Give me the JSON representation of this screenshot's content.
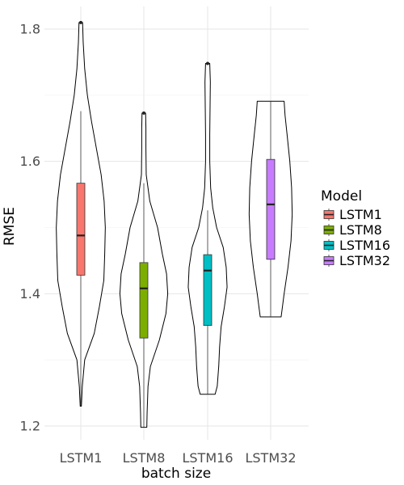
{
  "chart_data": {
    "type": "violin",
    "xlabel": "batch size",
    "ylabel": "RMSE",
    "ylim": [
      1.19,
      1.835
    ],
    "yticks": [
      1.2,
      1.4,
      1.6,
      1.8
    ],
    "ytick_labels": [
      "1.2",
      "1.4",
      "1.6",
      "1.8"
    ],
    "grid": true,
    "legend_title": "Model",
    "legend_position": "right",
    "categories": [
      "LSTM1",
      "LSTM8",
      "LSTM16",
      "LSTM32"
    ],
    "series": [
      {
        "name": "LSTM1",
        "color": "#F8766D",
        "min": 1.23,
        "q1": 1.428,
        "median": 1.488,
        "q3": 1.567,
        "max": 1.81,
        "whisker_low": 1.23,
        "whisker_high": 1.676,
        "outliers": [
          1.81
        ],
        "density": [
          [
            1.23,
            0.02
          ],
          [
            1.26,
            0.05
          ],
          [
            1.3,
            0.13
          ],
          [
            1.34,
            0.45
          ],
          [
            1.38,
            0.62
          ],
          [
            1.42,
            0.77
          ],
          [
            1.46,
            0.8
          ],
          [
            1.5,
            0.82
          ],
          [
            1.54,
            0.78
          ],
          [
            1.58,
            0.68
          ],
          [
            1.62,
            0.52
          ],
          [
            1.66,
            0.36
          ],
          [
            1.7,
            0.22
          ],
          [
            1.74,
            0.13
          ],
          [
            1.78,
            0.08
          ],
          [
            1.81,
            0.06
          ]
        ]
      },
      {
        "name": "LSTM8",
        "color": "#7CAE00",
        "min": 1.198,
        "q1": 1.333,
        "median": 1.408,
        "q3": 1.447,
        "max": 1.673,
        "whisker_low": 1.198,
        "whisker_high": 1.567,
        "outliers": [
          1.673
        ],
        "density": [
          [
            1.198,
            0.1
          ],
          [
            1.22,
            0.11
          ],
          [
            1.26,
            0.14
          ],
          [
            1.29,
            0.22
          ],
          [
            1.33,
            0.52
          ],
          [
            1.37,
            0.74
          ],
          [
            1.4,
            0.8
          ],
          [
            1.43,
            0.76
          ],
          [
            1.46,
            0.62
          ],
          [
            1.5,
            0.46
          ],
          [
            1.54,
            0.2
          ],
          [
            1.58,
            0.08
          ],
          [
            1.62,
            0.07
          ],
          [
            1.65,
            0.07
          ],
          [
            1.673,
            0.06
          ]
        ]
      },
      {
        "name": "LSTM16",
        "color": "#00BFC4",
        "min": 1.248,
        "q1": 1.352,
        "median": 1.435,
        "q3": 1.459,
        "max": 1.748,
        "whisker_low": 1.248,
        "whisker_high": 1.526,
        "outliers": [
          1.748
        ],
        "density": [
          [
            1.248,
            0.25
          ],
          [
            1.26,
            0.32
          ],
          [
            1.29,
            0.37
          ],
          [
            1.32,
            0.4
          ],
          [
            1.35,
            0.45
          ],
          [
            1.38,
            0.56
          ],
          [
            1.41,
            0.65
          ],
          [
            1.44,
            0.62
          ],
          [
            1.47,
            0.52
          ],
          [
            1.5,
            0.3
          ],
          [
            1.53,
            0.17
          ],
          [
            1.56,
            0.1
          ],
          [
            1.6,
            0.07
          ],
          [
            1.64,
            0.07
          ],
          [
            1.68,
            0.08
          ],
          [
            1.72,
            0.09
          ],
          [
            1.748,
            0.07
          ]
        ]
      },
      {
        "name": "LSTM32",
        "color": "#C77CFF",
        "min": 1.365,
        "q1": 1.452,
        "median": 1.535,
        "q3": 1.603,
        "max": 1.691,
        "whisker_low": 1.365,
        "whisker_high": 1.691,
        "outliers": [],
        "density": [
          [
            1.365,
            0.35
          ],
          [
            1.4,
            0.45
          ],
          [
            1.44,
            0.58
          ],
          [
            1.48,
            0.68
          ],
          [
            1.52,
            0.72
          ],
          [
            1.56,
            0.7
          ],
          [
            1.6,
            0.64
          ],
          [
            1.64,
            0.55
          ],
          [
            1.67,
            0.48
          ],
          [
            1.691,
            0.45
          ]
        ]
      }
    ]
  }
}
